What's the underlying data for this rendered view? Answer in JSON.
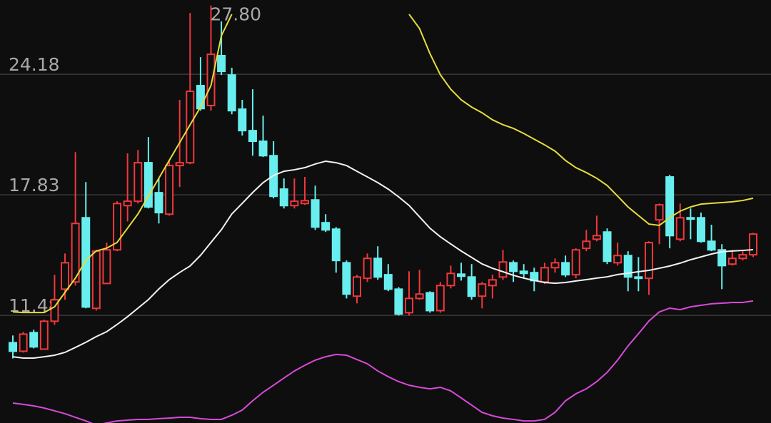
{
  "chart_data": {
    "type": "candlestick",
    "up_color": "#f0383d",
    "down_color": "#68eeee",
    "grid_color": "#3a3a3a",
    "grid": true,
    "ylim": [
      5.81,
      28.09
    ],
    "yticks": [
      11.48,
      17.83,
      24.18
    ],
    "max_label": "27.80",
    "open": [
      10.04,
      9.59,
      10.57,
      9.7,
      11.17,
      12.86,
      13.24,
      16.62,
      11.85,
      13.16,
      14.93,
      17.26,
      17.49,
      19.52,
      17.94,
      16.81,
      19.37,
      19.52,
      23.58,
      22.53,
      25.16,
      24.14,
      22.34,
      21.21,
      20.65,
      19.89,
      18.13,
      17.26,
      17.37,
      17.56,
      16.36,
      16.02,
      14.25,
      12.49,
      13.43,
      14.48,
      13.62,
      12.86,
      11.62,
      12.37,
      12.67,
      11.73,
      13.05,
      13.65,
      13.5,
      12.49,
      13.05,
      13.5,
      14.25,
      13.8,
      13.73,
      13.24,
      13.99,
      14.25,
      13.62,
      15.01,
      15.49,
      15.87,
      14.25,
      14.63,
      13.5,
      13.43,
      16.51,
      18.77,
      15.49,
      16.62,
      16.62,
      15.38,
      14.93,
      14.18,
      14.48,
      14.67
    ],
    "high": [
      10.42,
      10.61,
      10.72,
      11.25,
      13.62,
      14.74,
      20.08,
      18.5,
      14.93,
      15.31,
      17.49,
      20.01,
      20.19,
      20.87,
      18.69,
      19.63,
      22.83,
      27.41,
      25.08,
      27.8,
      26.96,
      24.52,
      22.83,
      23.39,
      22.0,
      20.65,
      18.69,
      18.69,
      18.77,
      18.31,
      16.81,
      16.13,
      14.37,
      13.62,
      14.74,
      15.12,
      14.18,
      12.97,
      13.8,
      13.88,
      12.75,
      13.24,
      14.1,
      14.25,
      14.18,
      13.24,
      13.62,
      14.93,
      14.37,
      14.18,
      13.99,
      14.25,
      14.48,
      14.63,
      15.01,
      15.98,
      16.73,
      16.06,
      15.31,
      14.86,
      14.55,
      15.38,
      17.37,
      18.88,
      17.37,
      17.11,
      16.89,
      16.25,
      15.23,
      14.93,
      14.86,
      15.83
    ],
    "low": [
      9.21,
      9.52,
      9.74,
      9.67,
      10.98,
      12.3,
      13.05,
      11.85,
      11.73,
      13.13,
      14.86,
      16.43,
      17.37,
      17.11,
      16.32,
      16.73,
      18.24,
      19.44,
      22.26,
      22.26,
      24.14,
      22.07,
      20.95,
      19.89,
      19.82,
      17.64,
      17.11,
      17.11,
      17.3,
      15.98,
      15.87,
      13.73,
      12.37,
      12.11,
      13.24,
      13.35,
      12.75,
      11.47,
      11.47,
      12.3,
      11.62,
      11.62,
      12.9,
      13.31,
      12.3,
      11.85,
      12.37,
      13.35,
      13.24,
      13.43,
      12.75,
      13.13,
      13.73,
      13.5,
      13.43,
      14.86,
      15.38,
      14.18,
      14.1,
      12.75,
      12.75,
      12.56,
      15.23,
      15.01,
      15.38,
      15.49,
      15.31,
      14.86,
      12.86,
      14.1,
      14.37,
      14.55
    ],
    "close": [
      9.59,
      10.49,
      9.82,
      11.17,
      12.3,
      14.25,
      16.32,
      11.92,
      14.86,
      14.93,
      17.37,
      17.49,
      19.52,
      17.19,
      16.89,
      19.37,
      19.52,
      23.28,
      22.37,
      25.23,
      24.33,
      22.26,
      21.21,
      20.65,
      19.89,
      17.75,
      17.26,
      17.49,
      17.52,
      16.13,
      15.98,
      14.37,
      12.6,
      13.5,
      14.48,
      13.5,
      12.86,
      11.55,
      12.37,
      12.6,
      11.73,
      13.05,
      13.69,
      13.54,
      12.49,
      13.13,
      13.35,
      14.29,
      13.8,
      13.69,
      13.31,
      13.99,
      14.25,
      13.62,
      14.93,
      15.38,
      15.68,
      14.33,
      14.63,
      13.5,
      13.43,
      15.31,
      17.3,
      15.68,
      16.62,
      16.55,
      15.38,
      14.93,
      14.1,
      14.48,
      14.67,
      15.76
    ],
    "series": [
      {
        "color": "#e6dc3c",
        "values": [
          11.66,
          11.63,
          11.63,
          11.63,
          11.93,
          12.69,
          13.44,
          14.38,
          14.87,
          15.02,
          15.32,
          16.07,
          16.82,
          17.76,
          18.7,
          19.64,
          20.58,
          21.52,
          22.45,
          23.58,
          26.21,
          27.34,
          null,
          null,
          null,
          null,
          null,
          null,
          null,
          null,
          null,
          null,
          null,
          null,
          null,
          null,
          null,
          null,
          27.34,
          26.59,
          25.27,
          24.15,
          23.39,
          22.83,
          22.45,
          22.15,
          21.78,
          21.52,
          21.33,
          21.06,
          20.76,
          20.46,
          20.13,
          19.64,
          19.26,
          19.0,
          18.7,
          18.32,
          17.76,
          17.19,
          16.74,
          16.29,
          16.22,
          16.63,
          16.97,
          17.19,
          17.34,
          17.38,
          17.42,
          17.46,
          17.53,
          17.65
        ]
      },
      {
        "color": "#f2f2f2",
        "values": [
          9.3,
          9.23,
          9.23,
          9.3,
          9.38,
          9.53,
          9.79,
          10.06,
          10.36,
          10.62,
          11.0,
          11.41,
          11.86,
          12.31,
          12.87,
          13.36,
          13.74,
          14.08,
          14.64,
          15.32,
          15.99,
          16.82,
          17.38,
          17.95,
          18.47,
          18.85,
          19.07,
          19.15,
          19.26,
          19.45,
          19.6,
          19.52,
          19.37,
          19.07,
          18.77,
          18.47,
          18.13,
          17.72,
          17.27,
          16.67,
          16.07,
          15.62,
          15.24,
          14.87,
          14.53,
          14.19,
          13.96,
          13.78,
          13.59,
          13.44,
          13.32,
          13.21,
          13.17,
          13.21,
          13.29,
          13.36,
          13.44,
          13.51,
          13.63,
          13.7,
          13.78,
          13.85,
          13.96,
          14.08,
          14.23,
          14.41,
          14.56,
          14.71,
          14.83,
          14.87,
          14.9,
          14.94
        ]
      },
      {
        "color": "#d84ad8",
        "values": [
          6.86,
          6.79,
          6.71,
          6.6,
          6.45,
          6.3,
          6.11,
          5.92,
          5.7,
          5.81,
          5.92,
          5.96,
          6.0,
          6.0,
          6.04,
          6.07,
          6.11,
          6.11,
          6.04,
          6.0,
          6.0,
          6.22,
          6.49,
          6.98,
          7.43,
          7.8,
          8.18,
          8.55,
          8.85,
          9.12,
          9.3,
          9.42,
          9.38,
          9.15,
          8.93,
          8.55,
          8.25,
          7.99,
          7.8,
          7.69,
          7.61,
          7.69,
          7.5,
          7.13,
          6.75,
          6.37,
          6.19,
          6.07,
          6.0,
          5.92,
          5.92,
          6.0,
          6.37,
          6.98,
          7.35,
          7.61,
          7.99,
          8.48,
          9.12,
          9.87,
          10.51,
          11.18,
          11.66,
          11.86,
          11.78,
          11.93,
          12.01,
          12.09,
          12.12,
          12.16,
          12.16,
          12.24
        ]
      }
    ]
  }
}
